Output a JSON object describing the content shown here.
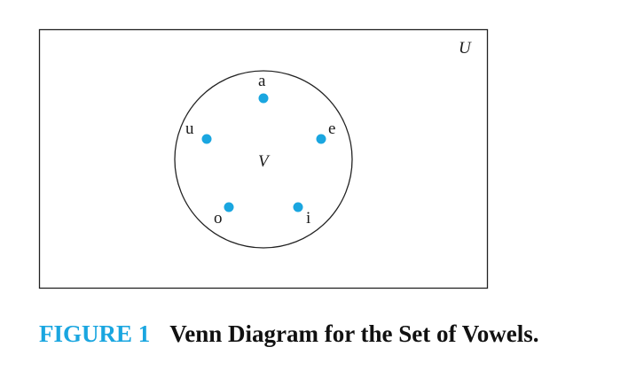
{
  "diagram": {
    "universe_label": "U",
    "set_label": "V",
    "elements": [
      "a",
      "e",
      "i",
      "o",
      "u"
    ],
    "colors": {
      "point": "#1aa6e0",
      "stroke": "#222222"
    }
  },
  "caption": {
    "number": "FIGURE 1",
    "text": "Venn Diagram for the Set of Vowels."
  }
}
